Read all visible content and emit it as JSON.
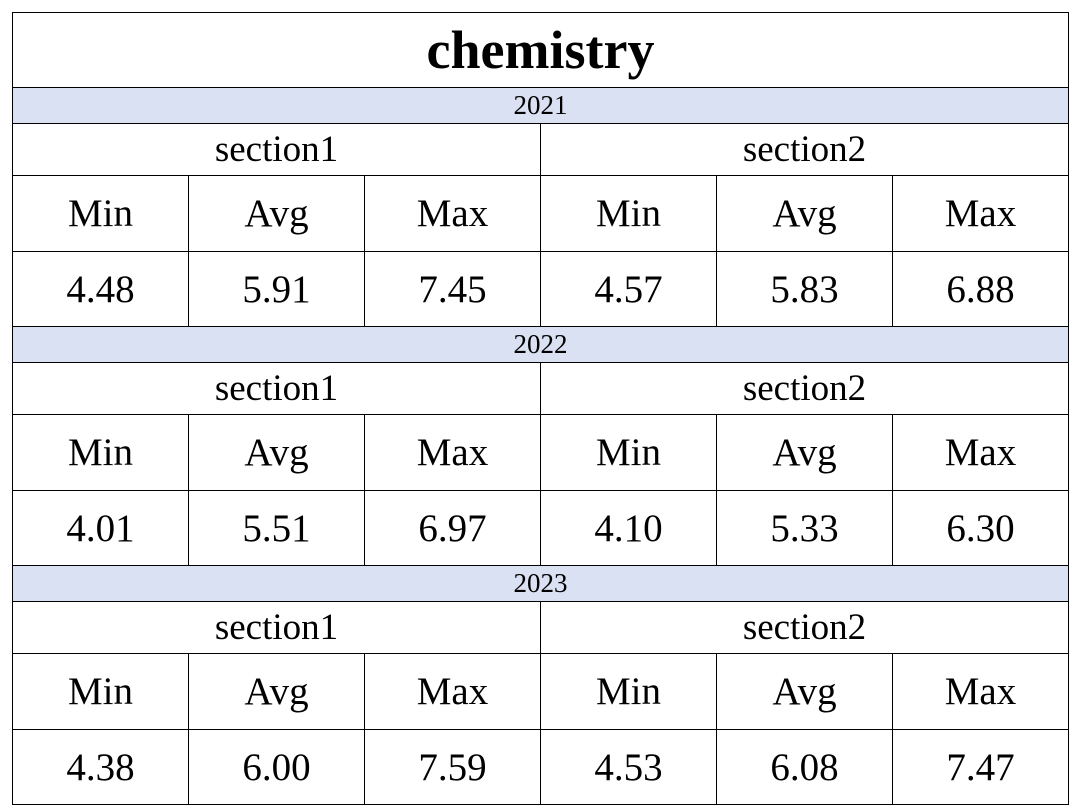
{
  "title": "chemistry",
  "years": [
    {
      "year": "2021",
      "sections": [
        {
          "name": "section1",
          "headers": [
            "Min",
            "Avg",
            "Max"
          ],
          "values": [
            "4.48",
            "5.91",
            "7.45"
          ]
        },
        {
          "name": "section2",
          "headers": [
            "Min",
            "Avg",
            "Max"
          ],
          "values": [
            "4.57",
            "5.83",
            "6.88"
          ]
        }
      ]
    },
    {
      "year": "2022",
      "sections": [
        {
          "name": "section1",
          "headers": [
            "Min",
            "Avg",
            "Max"
          ],
          "values": [
            "4.01",
            "5.51",
            "6.97"
          ]
        },
        {
          "name": "section2",
          "headers": [
            "Min",
            "Avg",
            "Max"
          ],
          "values": [
            "4.10",
            "5.33",
            "6.30"
          ]
        }
      ]
    },
    {
      "year": "2023",
      "sections": [
        {
          "name": "section1",
          "headers": [
            "Min",
            "Avg",
            "Max"
          ],
          "values": [
            "4.38",
            "6.00",
            "7.59"
          ]
        },
        {
          "name": "section2",
          "headers": [
            "Min",
            "Avg",
            "Max"
          ],
          "values": [
            "4.53",
            "6.08",
            "7.47"
          ]
        }
      ]
    }
  ]
}
